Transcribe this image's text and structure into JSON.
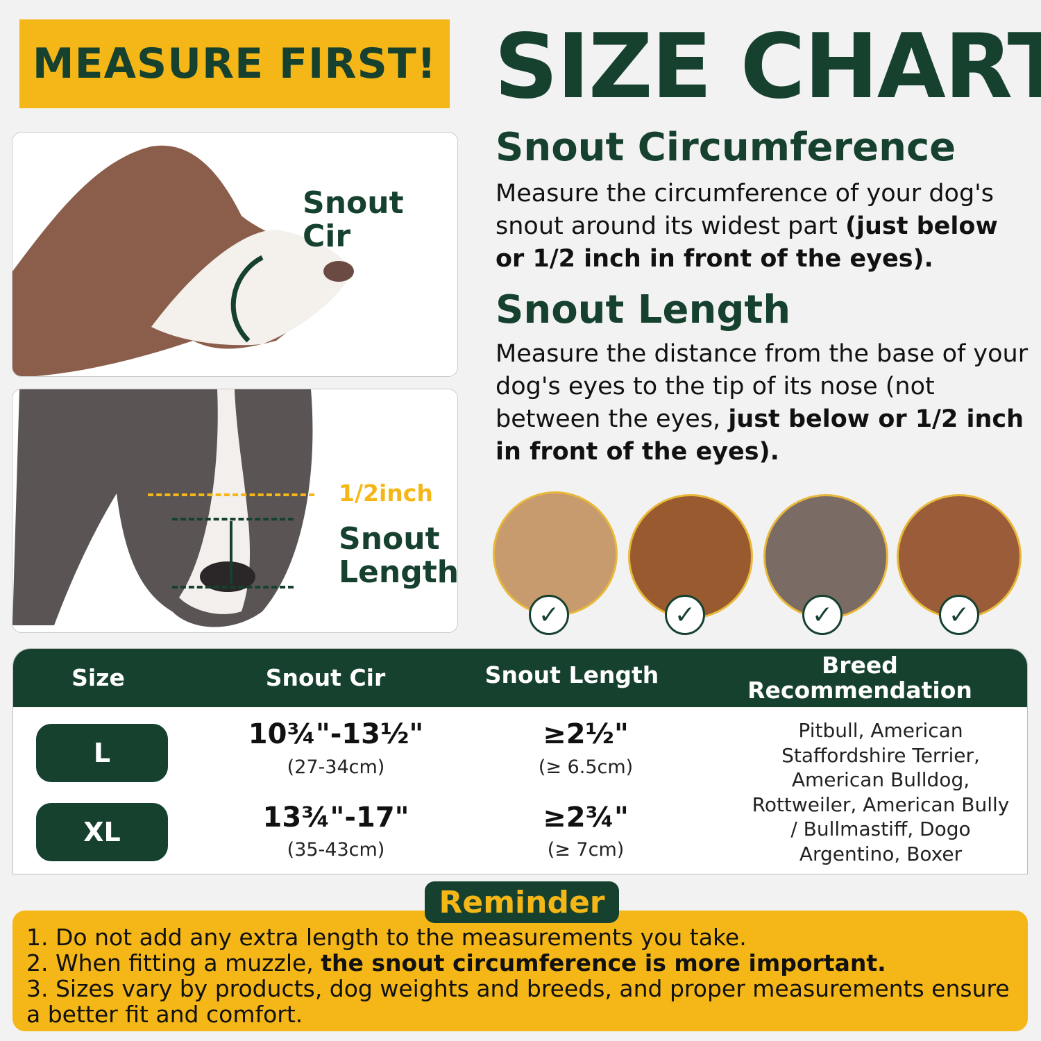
{
  "badge": "MEASURE FIRST!",
  "title": "SIZE CHART",
  "colors": {
    "green": "#16412f",
    "yellow": "#f5b718",
    "background": "#f2f2f2"
  },
  "circumference": {
    "heading": "Snout Circumference",
    "text": "Measure the circumference of your dog's snout around its widest part ",
    "bold": "(just below or 1/2 inch in front of the eyes)."
  },
  "length": {
    "heading": "Snout Length",
    "text": "Measure the distance from the base of your dog's eyes to the tip of its nose (not between the eyes, ",
    "bold": "just below or 1/2 inch in front of the eyes)."
  },
  "photo1": {
    "label": "Snout Cir",
    "icon": "curved-arrow-icon"
  },
  "photo2": {
    "half_inch": "1/2inch",
    "label_line1": "Snout",
    "label_line2": "Length",
    "icon": "double-arrow-icon"
  },
  "breed_photos": [
    {
      "icon": "check-icon"
    },
    {
      "icon": "check-icon"
    },
    {
      "icon": "check-icon"
    },
    {
      "icon": "check-icon"
    }
  ],
  "table": {
    "headers": [
      "Size",
      "Snout Cir",
      "Snout Length",
      "Breed",
      "Recommendation"
    ],
    "rows": [
      {
        "size": "L",
        "cir": "10¾\"-13½\"",
        "cir_cm": "(27-34cm)",
        "len": "≥2½\"",
        "len_cm": "(≥ 6.5cm)"
      },
      {
        "size": "XL",
        "cir": "13¾\"-17\"",
        "cir_cm": "(35-43cm)",
        "len": "≥2¾\"",
        "len_cm": "(≥ 7cm)"
      }
    ],
    "breeds": "Pitbull, American Staffordshire Terrier, American Bulldog, Rottweiler, American Bully / Bullmastiff, Dogo Argentino, Boxer"
  },
  "reminder": {
    "title": "Reminder",
    "items": [
      {
        "text": "1. Do not add any extra length to the measurements you take.",
        "bold": ""
      },
      {
        "text": "2. When fitting a muzzle, ",
        "bold": "the snout circumference is more important."
      },
      {
        "text": "3. Sizes vary by products, dog weights and breeds, and proper measurements ensure a better fit and comfort.",
        "bold": ""
      }
    ]
  }
}
